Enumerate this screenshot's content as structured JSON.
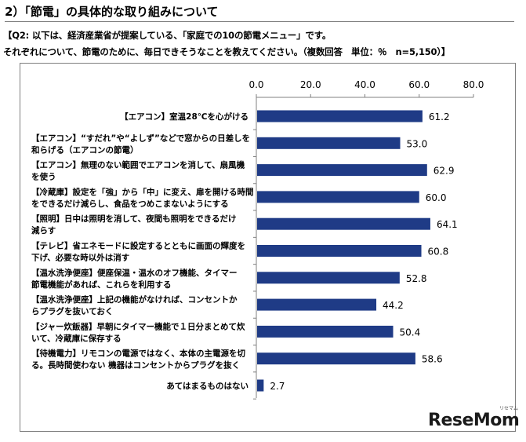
{
  "header": {
    "section_title": "2）「節電」の具体的な取り組みについて",
    "question_line1": "【Q2:  以下は、経済産業省が提案している、「家庭での10の節電メニュー」です。",
    "question_line2": "それぞれについて、節電のために、毎日できそうなことを教えてください。（複数回答　単位：％　n=5,150）】"
  },
  "chart_data": {
    "type": "bar",
    "orientation": "horizontal",
    "title": "",
    "xlim": [
      0,
      80
    ],
    "ticks": [
      0,
      20,
      40,
      60,
      80
    ],
    "tick_labels": [
      "0.0",
      "20.0",
      "40.0",
      "60.0",
      "80.0"
    ],
    "axis_position": "top",
    "grid": false,
    "bar_color": "#1f3b86",
    "categories": [
      [
        "【エアコン】室温28℃を心がける"
      ],
      [
        "【エアコン】“すだれ”や“よしず”などで窓からの日差しを",
        "和らげる（エアコンの節電）"
      ],
      [
        "【エアコン】無理のない範囲でエアコンを消して、扇風機",
        "を使う"
      ],
      [
        "【冷蔵庫】設定を「強」から「中」に変え、扉を開ける時間",
        "をできるだけ減らし、食品をつめこまないようにする"
      ],
      [
        "【照明】日中は照明を消して、夜間も照明をできるだけ",
        "減らす"
      ],
      [
        "【テレビ】省エネモードに設定するとともに画面の輝度を",
        "下げ、必要な時以外は消す"
      ],
      [
        "【温水洗浄便座】便座保温・温水のオフ機能、タイマー",
        "節電機能があれば、これらを利用する"
      ],
      [
        "【温水洗浄便座】上記の機能がなければ、コンセントか",
        "らプラグを抜いておく"
      ],
      [
        "【ジャー炊飯器】早朝にタイマー機能で１日分まとめて炊",
        "いて、冷蔵庫に保存する"
      ],
      [
        "【待機電力】リモコンの電源ではなく、本体の主電源を切",
        "る。長時間使わない 機器はコンセントからプラグを抜く"
      ],
      [
        "あてはまるものはない"
      ]
    ],
    "values": [
      61.2,
      53.0,
      62.9,
      60.0,
      64.1,
      60.8,
      52.8,
      44.2,
      50.4,
      58.6,
      2.7
    ],
    "value_labels": [
      "61.2",
      "53.0",
      "62.9",
      "60.0",
      "64.1",
      "60.8",
      "52.8",
      "44.2",
      "50.4",
      "58.6",
      "2.7"
    ]
  },
  "watermark": {
    "logo_text": "ReseMom",
    "logo_small": "リセマム"
  }
}
